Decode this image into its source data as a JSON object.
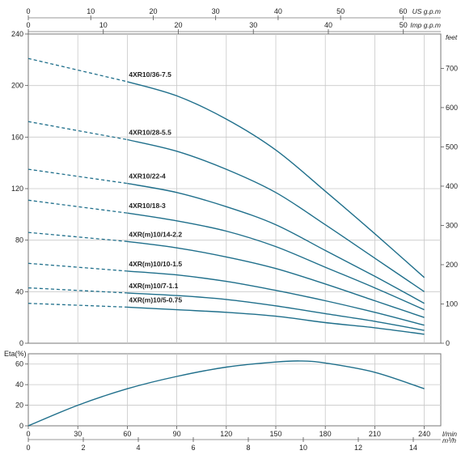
{
  "chart_data": [
    {
      "type": "line",
      "panel": "head-curves",
      "top_axis_1": {
        "label": "US g.p.m",
        "ticks": [
          "0",
          "10",
          "20",
          "30",
          "40",
          "50",
          "60"
        ],
        "range": [
          0,
          66.04
        ]
      },
      "top_axis_2": {
        "label": "Imp g.p.m",
        "ticks": [
          "0",
          "10",
          "20",
          "30",
          "40",
          "50"
        ],
        "range": [
          0,
          54.99
        ]
      },
      "left_axis": {
        "ticks": [
          "0",
          "40",
          "80",
          "120",
          "160",
          "200",
          "240"
        ],
        "range": [
          0,
          240
        ]
      },
      "right_axis": {
        "label": "feet",
        "ticks": [
          "0",
          "100",
          "200",
          "300",
          "400",
          "500",
          "600",
          "700"
        ],
        "range": [
          0,
          787.4
        ]
      },
      "x_range": [
        0,
        250
      ],
      "dashed_until_x": 60,
      "grid": true,
      "line_color": "#1f6f8b",
      "series": [
        {
          "name": "4XR10/36-7.5",
          "x": [
            0,
            60,
            90,
            120,
            150,
            180,
            210,
            240
          ],
          "y": [
            221,
            203,
            192,
            174,
            150,
            118,
            85,
            51
          ]
        },
        {
          "name": "4XR10/28-5.5",
          "x": [
            0,
            60,
            90,
            120,
            150,
            180,
            210,
            240
          ],
          "y": [
            172,
            158,
            149,
            135,
            117,
            92,
            66,
            40
          ]
        },
        {
          "name": "4XR10/22-4",
          "x": [
            0,
            60,
            90,
            120,
            150,
            180,
            210,
            240
          ],
          "y": [
            135,
            124,
            117,
            106,
            92,
            72,
            52,
            31
          ]
        },
        {
          "name": "4XR10/18-3",
          "x": [
            0,
            60,
            90,
            120,
            150,
            180,
            210,
            240
          ],
          "y": [
            111,
            101,
            95,
            87,
            75,
            59,
            43,
            26
          ]
        },
        {
          "name": "4XR(m)10/14-2.2",
          "x": [
            0,
            60,
            90,
            120,
            150,
            180,
            210,
            240
          ],
          "y": [
            86,
            79,
            74,
            67,
            58,
            46,
            33,
            20
          ]
        },
        {
          "name": "4XR(m)10/10-1.5",
          "x": [
            0,
            60,
            90,
            120,
            150,
            180,
            210,
            240
          ],
          "y": [
            62,
            56,
            53,
            48,
            41,
            33,
            24,
            14
          ]
        },
        {
          "name": "4XR(m)10/7-1.1",
          "x": [
            0,
            60,
            90,
            120,
            150,
            180,
            210,
            240
          ],
          "y": [
            43,
            39,
            37,
            34,
            29,
            23,
            17,
            10
          ]
        },
        {
          "name": "4XR(m)10/5-0.75",
          "x": [
            0,
            60,
            90,
            120,
            150,
            180,
            210,
            240
          ],
          "y": [
            31,
            28,
            26,
            24,
            21,
            16,
            12,
            7
          ]
        }
      ]
    },
    {
      "type": "line",
      "panel": "efficiency",
      "ylabel": "Eta(%)",
      "y_ticks": [
        "0",
        "20",
        "40",
        "60"
      ],
      "ylim": [
        0,
        70
      ],
      "x_range": [
        0,
        250
      ],
      "bottom_axis_1": {
        "label": "l/min",
        "ticks": [
          "0",
          "30",
          "60",
          "90",
          "120",
          "150",
          "180",
          "210",
          "240"
        ],
        "range": [
          0,
          250
        ]
      },
      "bottom_axis_2": {
        "label": "m³/h",
        "ticks": [
          "0",
          "2",
          "4",
          "6",
          "8",
          "10",
          "12",
          "14"
        ],
        "range": [
          0,
          15
        ]
      },
      "grid": true,
      "line_color": "#1f6f8b",
      "series": [
        {
          "name": "",
          "x": [
            0,
            30,
            60,
            90,
            120,
            150,
            165,
            180,
            210,
            240
          ],
          "y": [
            0,
            20,
            36,
            48,
            57,
            62,
            63,
            61,
            52,
            36
          ]
        }
      ]
    }
  ]
}
